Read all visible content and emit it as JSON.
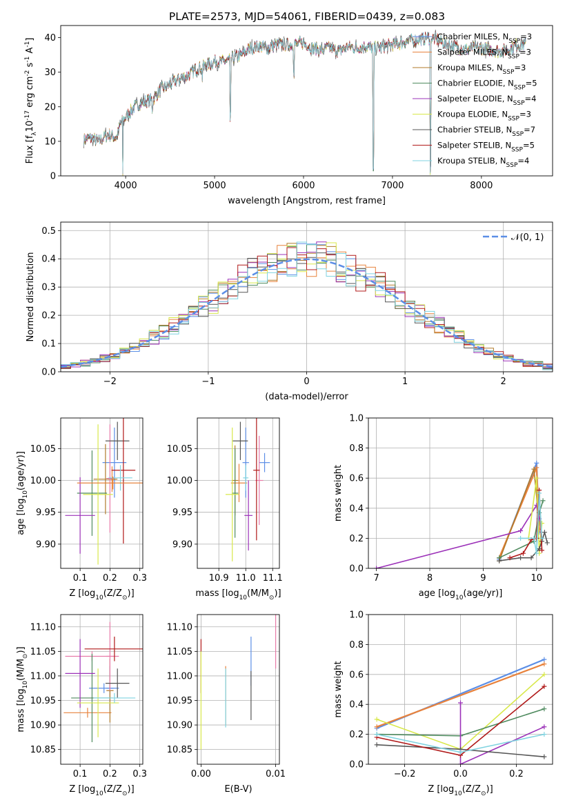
{
  "figure_title": "PLATE=2573, MJD=54061, FIBERID=0439, z=0.083",
  "colors": {
    "chabrier_miles": "#5b8ee6",
    "salpeter_miles": "#e8823c",
    "kroupa_miles": "#b07a2a",
    "chabrier_elodie": "#4e8a5e",
    "salpeter_elodie": "#9b30b8",
    "kroupa_elodie": "#d8e84a",
    "chabrier_stelib": "#555555",
    "salpeter_stelib": "#b01818",
    "kroupa_stelib": "#7fd3e0",
    "pink": "#e87aa8",
    "gauss": "#5b8ee6",
    "grid": "#b0b0b0"
  },
  "chart_data": [
    {
      "id": "spectrum",
      "type": "line",
      "title": "PLATE=2573, MJD=54061, FIBERID=0439, z=0.083",
      "xlabel": "wavelength [Angstrom, rest frame]",
      "ylabel_main": "Flux [f",
      "ylabel_sub1": "λ",
      "ylabel_mid": "10",
      "ylabel_sup1": "-17",
      "ylabel_tail": " erg cm",
      "ylabel_sup2": "-2",
      "ylabel_tail2": " s",
      "ylabel_sup3": "-1",
      "ylabel_tail3": " A",
      "ylabel_sup4": "-1",
      "ylabel_end": "]",
      "xlim": [
        3270,
        8800
      ],
      "ylim": [
        0,
        43.5
      ],
      "xticks": [
        4000,
        5000,
        6000,
        7000,
        8000
      ],
      "yticks": [
        0,
        10,
        20,
        30,
        40
      ],
      "grid": false,
      "legend_position": "top-right",
      "continuum_x": [
        3530,
        3600,
        3700,
        3800,
        3900,
        3940,
        4000,
        4100,
        4200,
        4300,
        4400,
        4500,
        4600,
        4700,
        4800,
        4900,
        5000,
        5100,
        5200,
        5300,
        5400,
        5500,
        5600,
        5700,
        5800,
        5900,
        6000,
        6100,
        6200,
        6300,
        6400,
        6500,
        6600,
        6700,
        6800,
        6900,
        7000,
        7100,
        7200,
        7300,
        7400,
        7500,
        7600,
        7700,
        7800,
        7900,
        8000,
        8100,
        8200,
        8300,
        8400,
        8500
      ],
      "continuum_y": [
        10.5,
        11,
        10,
        12,
        11,
        15,
        17,
        20,
        21.5,
        22,
        25,
        26.5,
        28,
        29,
        31,
        32,
        33,
        33,
        34,
        35,
        37,
        37.5,
        37,
        38,
        38,
        38,
        38.5,
        37,
        36.5,
        37,
        36,
        37.5,
        37,
        37.5,
        37,
        37.5,
        38,
        38.5,
        39,
        39.5,
        40,
        39.5,
        38,
        37.5,
        36.5,
        37,
        37,
        36.5,
        36,
        36.5,
        38,
        38
      ],
      "absorption_features": [
        {
          "x": 3968,
          "y": 0.5
        },
        {
          "x": 4300,
          "y": 17
        },
        {
          "x": 4861,
          "y": 27
        },
        {
          "x": 5175,
          "y": 15.5
        },
        {
          "x": 5893,
          "y": 28
        },
        {
          "x": 6785,
          "y": 0
        },
        {
          "x": 7425,
          "y": 0
        }
      ],
      "legend": [
        {
          "label": "Chabrier MILES, N",
          "sub": "SSP",
          "tail": "=3",
          "color_key": "chabrier_miles"
        },
        {
          "label": "Salpeter MILES, N",
          "sub": "SSP",
          "tail": "=3",
          "color_key": "salpeter_miles"
        },
        {
          "label": "Kroupa MILES, N",
          "sub": "SSP",
          "tail": "=3",
          "color_key": "kroupa_miles"
        },
        {
          "label": "Chabrier ELODIE, N",
          "sub": "SSP",
          "tail": "=5",
          "color_key": "chabrier_elodie"
        },
        {
          "label": "Salpeter ELODIE, N",
          "sub": "SSP",
          "tail": "=4",
          "color_key": "salpeter_elodie"
        },
        {
          "label": "Kroupa ELODIE, N",
          "sub": "SSP",
          "tail": "=3",
          "color_key": "kroupa_elodie"
        },
        {
          "label": "Chabrier STELIB, N",
          "sub": "SSP",
          "tail": "=7",
          "color_key": "chabrier_stelib"
        },
        {
          "label": "Salpeter STELIB, N",
          "sub": "SSP",
          "tail": "=5",
          "color_key": "salpeter_stelib"
        },
        {
          "label": "Kroupa STELIB, N",
          "sub": "SSP",
          "tail": "=4",
          "color_key": "kroupa_stelib"
        }
      ]
    },
    {
      "id": "residuals",
      "type": "line",
      "xlabel": "(data-model)/error",
      "ylabel": "Normed distribution",
      "xlim": [
        -2.5,
        2.5
      ],
      "ylim": [
        0,
        0.53
      ],
      "xticks": [
        -2,
        -1,
        0,
        1,
        2
      ],
      "xtick_labels": [
        "−2",
        "−1",
        "0",
        "1",
        "2"
      ],
      "yticks": [
        0.0,
        0.1,
        0.2,
        0.3,
        0.4,
        0.5
      ],
      "ytick_labels": [
        "0.0",
        "0.1",
        "0.2",
        "0.3",
        "0.4",
        "0.5"
      ],
      "grid": true,
      "legend_position": "top-right",
      "legend_label": "𝒩(0, 1)",
      "bin_width": 0.1
    },
    {
      "id": "age_vs_Z",
      "type": "scatter",
      "xlabel": "Z [log",
      "xlabel_sub": "10",
      "xlabel_tail": "(Z/Z",
      "xlabel_sub2": "⊙",
      "xlabel_end": ")]",
      "ylabel": "age  [log",
      "ylabel_sub": "10",
      "ylabel_tail": "(age/yr)]",
      "xlim": [
        0.035,
        0.31
      ],
      "ylim": [
        9.862,
        10.098
      ],
      "xticks": [
        0.1,
        0.2,
        0.3
      ],
      "yticks": [
        9.9,
        9.95,
        10.0,
        10.05
      ],
      "ytick_labels": [
        "9.90",
        "9.95",
        "10.00",
        "10.05"
      ],
      "grid": true,
      "points": [
        {
          "x": 0.215,
          "y": 10.028,
          "xerr": 0.04,
          "yerr": 0.055,
          "c": "chabrier_miles"
        },
        {
          "x": 0.207,
          "y": 10.002,
          "xerr": 0.012,
          "yerr": 0.02,
          "c": "salpeter_miles"
        },
        {
          "x": 0.185,
          "y": 10.002,
          "xerr": 0.04,
          "yerr": 0.055,
          "c": "kroupa_miles"
        },
        {
          "x": 0.2,
          "y": 10.003,
          "xerr": 0.012,
          "yerr": 0.085,
          "c": "pink"
        },
        {
          "x": 0.14,
          "y": 9.98,
          "xerr": 0.05,
          "yerr": 0.067,
          "c": "chabrier_elodie"
        },
        {
          "x": 0.1,
          "y": 9.945,
          "xerr": 0.05,
          "yerr": 0.06,
          "c": "salpeter_elodie"
        },
        {
          "x": 0.16,
          "y": 9.978,
          "xerr": 0.05,
          "yerr": 0.11,
          "c": "kroupa_elodie"
        },
        {
          "x": 0.225,
          "y": 10.062,
          "xerr": 0.04,
          "yerr": 0.03,
          "c": "chabrier_stelib"
        },
        {
          "x": 0.245,
          "y": 10.016,
          "xerr": 0.04,
          "yerr": 0.115,
          "c": "salpeter_stelib"
        },
        {
          "x": 0.235,
          "y": 10.004,
          "xerr": 0.04,
          "yerr": 0.02,
          "c": "kroupa_stelib"
        },
        {
          "x": 0.21,
          "y": 9.996,
          "xerr": 0.12,
          "yerr": 0.01,
          "c": "salpeter_miles"
        }
      ]
    },
    {
      "id": "age_vs_mass",
      "type": "scatter",
      "xlabel": "mass [log",
      "xlabel_sub": "10",
      "xlabel_tail": "(M/M",
      "xlabel_sub2": "⊙",
      "xlabel_end": ")]",
      "xlim": [
        10.82,
        11.125
      ],
      "ylim": [
        9.862,
        10.098
      ],
      "xticks": [
        10.9,
        11.0,
        11.1
      ],
      "xtick_labels": [
        "10.9",
        "11.0",
        "11.1"
      ],
      "yticks": [
        9.9,
        9.95,
        10.0,
        10.05
      ],
      "ytick_labels": [
        "9.90",
        "9.95",
        "10.00",
        "10.05"
      ],
      "grid": true,
      "points": [
        {
          "x": 11.0,
          "y": 10.028,
          "xerr": 0.012,
          "yerr": 0.055,
          "c": "chabrier_miles"
        },
        {
          "x": 11.07,
          "y": 10.028,
          "xerr": 0.02,
          "yerr": 0.015,
          "c": "chabrier_miles"
        },
        {
          "x": 10.975,
          "y": 9.996,
          "xerr": 0.03,
          "yerr": 0.03,
          "c": "salpeter_miles"
        },
        {
          "x": 10.96,
          "y": 10.0,
          "xerr": 0.012,
          "yerr": 0.055,
          "c": "kroupa_miles"
        },
        {
          "x": 11.05,
          "y": 10.0,
          "xerr": 0.015,
          "yerr": 0.07,
          "c": "pink"
        },
        {
          "x": 10.96,
          "y": 9.98,
          "xerr": 0.012,
          "yerr": 0.07,
          "c": "chabrier_elodie"
        },
        {
          "x": 11.01,
          "y": 9.945,
          "xerr": 0.015,
          "yerr": 0.055,
          "c": "salpeter_elodie"
        },
        {
          "x": 10.95,
          "y": 9.978,
          "xerr": 0.025,
          "yerr": 0.105,
          "c": "kroupa_elodie"
        },
        {
          "x": 10.98,
          "y": 10.062,
          "xerr": 0.028,
          "yerr": 0.03,
          "c": "chabrier_stelib"
        },
        {
          "x": 11.04,
          "y": 10.016,
          "xerr": 0.012,
          "yerr": 0.11,
          "c": "salpeter_stelib"
        },
        {
          "x": 11.0,
          "y": 10.004,
          "xerr": 0.01,
          "yerr": 0.02,
          "c": "kroupa_stelib"
        }
      ]
    },
    {
      "id": "weight_vs_age",
      "type": "line",
      "xlabel": "age  [log",
      "xlabel_sub": "10",
      "xlabel_tail": "(age/yr)]",
      "ylabel": "mass weight",
      "xlim": [
        6.85,
        10.3
      ],
      "ylim": [
        0,
        1
      ],
      "xticks": [
        7,
        8,
        9,
        10
      ],
      "yticks": [
        0.0,
        0.2,
        0.4,
        0.6,
        0.8,
        1.0
      ],
      "ytick_labels": [
        "0.0",
        "0.2",
        "0.4",
        "0.6",
        "0.8",
        "1.0"
      ],
      "grid": true,
      "series": [
        {
          "c": "chabrier_miles",
          "x": [
            9.3,
            10.0,
            10.05
          ],
          "y": [
            0.06,
            0.7,
            0.24
          ]
        },
        {
          "c": "salpeter_miles",
          "x": [
            9.3,
            10.0,
            10.05
          ],
          "y": [
            0.07,
            0.67,
            0.26
          ]
        },
        {
          "c": "kroupa_miles",
          "x": [
            9.3,
            9.95,
            10.05
          ],
          "y": [
            0.05,
            0.66,
            0.3
          ]
        },
        {
          "c": "chabrier_elodie",
          "x": [
            9.3,
            9.95,
            10.05,
            10.12
          ],
          "y": [
            0.07,
            0.18,
            0.37,
            0.45
          ]
        },
        {
          "c": "salpeter_elodie",
          "x": [
            7.0,
            9.7,
            10.0,
            10.05
          ],
          "y": [
            0.0,
            0.25,
            0.42,
            0.33
          ]
        },
        {
          "c": "kroupa_elodie",
          "x": [
            9.85,
            10.0,
            10.05,
            10.1
          ],
          "y": [
            0.2,
            0.6,
            0.1,
            0.3
          ]
        },
        {
          "c": "chabrier_stelib",
          "x": [
            9.3,
            9.7,
            9.9,
            10.05,
            10.1,
            10.15,
            10.2
          ],
          "y": [
            0.05,
            0.07,
            0.07,
            0.13,
            0.18,
            0.24,
            0.17
          ]
        },
        {
          "c": "salpeter_stelib",
          "x": [
            9.5,
            9.75,
            9.9,
            10.0,
            10.05,
            10.1
          ],
          "y": [
            0.07,
            0.1,
            0.19,
            0.2,
            0.52,
            0.12
          ]
        },
        {
          "c": "kroupa_stelib",
          "x": [
            9.7,
            9.95,
            10.0,
            10.05,
            10.1
          ],
          "y": [
            0.2,
            0.2,
            0.1,
            0.5,
            0.2
          ]
        }
      ]
    },
    {
      "id": "mass_vs_Z",
      "type": "scatter",
      "xlabel": "Z [log",
      "xlabel_sub": "10",
      "xlabel_tail": "(Z/Z",
      "xlabel_sub2": "⊙",
      "xlabel_end": ")]",
      "ylabel": "mass [log",
      "ylabel_sub": "10",
      "ylabel_tail": "(M/M",
      "ylabel_sub2": "⊙",
      "ylabel_end": ")]",
      "xlim": [
        0.035,
        0.31
      ],
      "ylim": [
        10.82,
        11.125
      ],
      "xticks": [
        0.1,
        0.2,
        0.3
      ],
      "yticks": [
        10.85,
        10.9,
        10.95,
        11.0,
        11.05,
        11.1
      ],
      "ytick_labels": [
        "10.85",
        "10.90",
        "10.95",
        "11.00",
        "11.05",
        "11.10"
      ],
      "grid": true,
      "points": [
        {
          "x": 0.18,
          "y": 10.975,
          "xerr": 0.05,
          "yerr": 0.01,
          "c": "chabrier_miles"
        },
        {
          "x": 0.2,
          "y": 10.975,
          "xerr": 0.012,
          "yerr": 0.045,
          "c": "chabrier_miles"
        },
        {
          "x": 0.125,
          "y": 10.925,
          "xerr": 0.08,
          "yerr": 0.01,
          "c": "salpeter_miles"
        },
        {
          "x": 0.2,
          "y": 10.97,
          "xerr": 0.012,
          "yerr": 0.065,
          "c": "kroupa_miles"
        },
        {
          "x": 0.14,
          "y": 11.04,
          "xerr": 0.09,
          "yerr": 0.01,
          "c": "pink"
        },
        {
          "x": 0.2,
          "y": 11.04,
          "xerr": 0.012,
          "yerr": 0.07,
          "c": "pink"
        },
        {
          "x": 0.14,
          "y": 10.955,
          "xerr": 0.07,
          "yerr": 0.09,
          "c": "chabrier_elodie"
        },
        {
          "x": 0.1,
          "y": 11.005,
          "xerr": 0.05,
          "yerr": 0.07,
          "c": "salpeter_elodie"
        },
        {
          "x": 0.16,
          "y": 10.945,
          "xerr": 0.07,
          "yerr": 0.07,
          "c": "kroupa_elodie"
        },
        {
          "x": 0.225,
          "y": 10.985,
          "xerr": 0.04,
          "yerr": 0.03,
          "c": "chabrier_stelib"
        },
        {
          "x": 0.215,
          "y": 11.055,
          "xerr": 0.1,
          "yerr": 0.025,
          "c": "salpeter_stelib"
        },
        {
          "x": 0.215,
          "y": 10.955,
          "xerr": 0.07,
          "yerr": 0.01,
          "c": "kroupa_stelib"
        }
      ]
    },
    {
      "id": "mass_vs_ebv",
      "type": "scatter",
      "xlabel": "E(B-V)",
      "xlim": [
        -0.0005,
        0.0105
      ],
      "ylim": [
        10.82,
        11.125
      ],
      "xticks": [
        0.0,
        0.01
      ],
      "xtick_labels": [
        "0.00",
        "0.01"
      ],
      "yticks": [
        10.85,
        10.9,
        10.95,
        11.0,
        11.05,
        11.1
      ],
      "ytick_labels": [
        "10.85",
        "10.90",
        "10.95",
        "11.00",
        "11.05",
        "11.10"
      ],
      "grid": true,
      "points": [
        {
          "x": 0.0,
          "y": 11.02,
          "yerr": 0.055,
          "c": "salpeter_stelib"
        },
        {
          "x": 0.0,
          "y": 10.95,
          "yerr": 0.1,
          "c": "kroupa_elodie"
        },
        {
          "x": 0.0033,
          "y": 10.96,
          "yerr": 0.06,
          "c": "salpeter_miles"
        },
        {
          "x": 0.0033,
          "y": 10.955,
          "yerr": 0.06,
          "c": "kroupa_stelib"
        },
        {
          "x": 0.0067,
          "y": 11.03,
          "yerr": 0.05,
          "c": "chabrier_miles"
        },
        {
          "x": 0.0067,
          "y": 10.96,
          "yerr": 0.05,
          "c": "chabrier_stelib"
        },
        {
          "x": 0.01,
          "y": 11.07,
          "yerr": 0.055,
          "c": "pink"
        }
      ]
    },
    {
      "id": "weight_vs_Z",
      "type": "line",
      "xlabel": "Z [log",
      "xlabel_sub": "10",
      "xlabel_tail": "(Z/Z",
      "xlabel_sub2": "⊙",
      "xlabel_end": ")]",
      "ylabel": "mass weight",
      "xlim": [
        -0.33,
        0.33
      ],
      "ylim": [
        0,
        1
      ],
      "xticks": [
        -0.2,
        0.0,
        0.2
      ],
      "xtick_labels": [
        "−0.2",
        "0.0",
        "0.2"
      ],
      "yticks": [
        0.0,
        0.2,
        0.4,
        0.6,
        0.8,
        1.0
      ],
      "ytick_labels": [
        "0.0",
        "0.2",
        "0.4",
        "0.6",
        "0.8",
        "1.0"
      ],
      "grid": true,
      "series": [
        {
          "c": "chabrier_miles",
          "x": [
            -0.3,
            0.3
          ],
          "y": [
            0.24,
            0.7
          ]
        },
        {
          "c": "salpeter_miles",
          "x": [
            -0.3,
            0.3
          ],
          "y": [
            0.25,
            0.67
          ]
        },
        {
          "c": "kroupa_elodie",
          "x": [
            -0.3,
            0.0,
            0.3
          ],
          "y": [
            0.3,
            0.1,
            0.6
          ]
        },
        {
          "c": "chabrier_elodie",
          "x": [
            -0.3,
            0.0,
            0.3
          ],
          "y": [
            0.2,
            0.19,
            0.37
          ]
        },
        {
          "c": "salpeter_elodie",
          "x": [
            0.0,
            0.0,
            0.3
          ],
          "y": [
            0.41,
            0.0,
            0.25
          ]
        },
        {
          "c": "chabrier_stelib",
          "x": [
            -0.3,
            0.0,
            0.3
          ],
          "y": [
            0.13,
            0.1,
            0.05
          ]
        },
        {
          "c": "salpeter_stelib",
          "x": [
            -0.3,
            0.0,
            0.3
          ],
          "y": [
            0.18,
            0.06,
            0.52
          ]
        },
        {
          "c": "kroupa_stelib",
          "x": [
            -0.3,
            0.0,
            0.3
          ],
          "y": [
            0.2,
            0.08,
            0.2
          ]
        }
      ]
    }
  ]
}
